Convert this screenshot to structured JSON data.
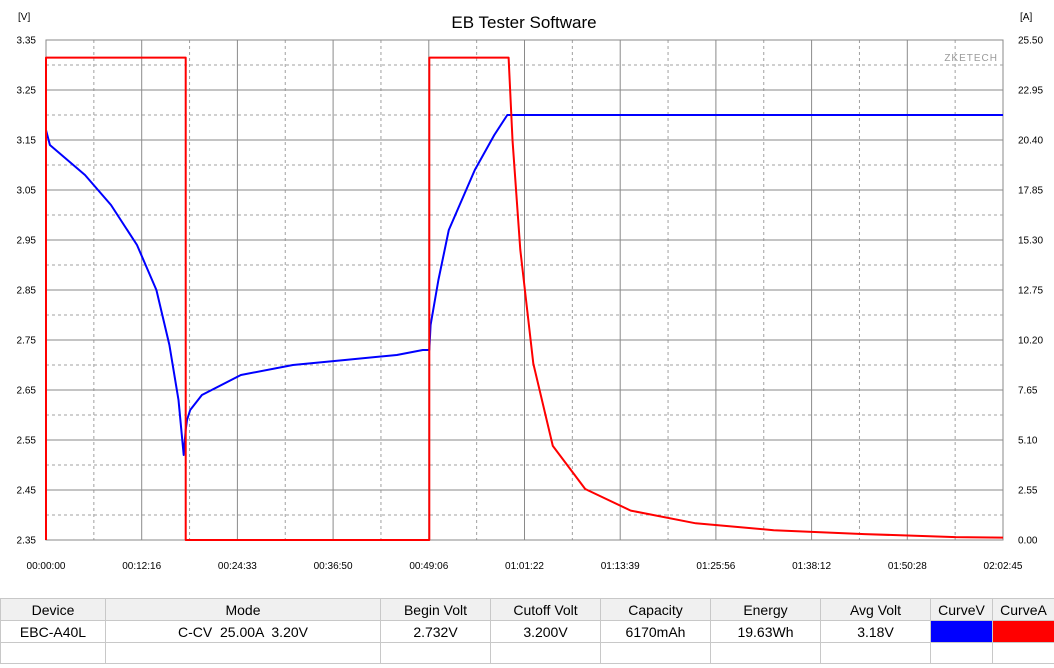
{
  "chart_data": {
    "type": "line",
    "title": "EB Tester Software",
    "watermark": "ZKETECH",
    "y_left_unit": "[V]",
    "y_right_unit": "[A]",
    "y_left_range": [
      2.35,
      3.35
    ],
    "y_right_range": [
      0.0,
      25.5
    ],
    "x_range_seconds": [
      0,
      7365
    ],
    "x_tick_labels": [
      "00:00:00",
      "00:12:16",
      "00:24:33",
      "00:36:50",
      "00:49:06",
      "01:01:22",
      "01:13:39",
      "01:25:56",
      "01:38:12",
      "01:50:28",
      "02:02:45"
    ],
    "y_left_tick_labels": [
      "3.35",
      "3.25",
      "3.15",
      "3.05",
      "2.95",
      "2.85",
      "2.75",
      "2.65",
      "2.55",
      "2.45",
      "2.35"
    ],
    "y_right_tick_labels": [
      "25.50",
      "22.95",
      "20.40",
      "17.85",
      "15.30",
      "12.75",
      "10.20",
      "7.65",
      "5.10",
      "2.55",
      "0.00"
    ],
    "grid": true,
    "series": [
      {
        "name": "CurveV",
        "axis": "left",
        "color": "#0000ff",
        "x": [
          0,
          30,
          120,
          300,
          500,
          700,
          850,
          950,
          1020,
          1060,
          1075,
          1085,
          1110,
          1200,
          1500,
          1900,
          2300,
          2700,
          2900,
          2950,
          2960,
          3020,
          3100,
          3300,
          3450,
          3550,
          7365
        ],
        "y": [
          3.17,
          3.14,
          3.12,
          3.08,
          3.02,
          2.94,
          2.85,
          2.74,
          2.63,
          2.52,
          2.57,
          2.59,
          2.61,
          2.64,
          2.68,
          2.7,
          2.71,
          2.72,
          2.73,
          2.73,
          2.78,
          2.87,
          2.97,
          3.09,
          3.16,
          3.2,
          3.2
        ]
      },
      {
        "name": "CurveA",
        "axis": "right",
        "color": "#ff0000",
        "x": [
          0,
          0,
          10,
          1075,
          1075,
          2950,
          2950,
          3560,
          3590,
          3650,
          3750,
          3900,
          4150,
          4500,
          5000,
          5600,
          6300,
          7000,
          7365
        ],
        "y": [
          0,
          24.6,
          24.6,
          24.6,
          0,
          0,
          24.6,
          24.6,
          20.4,
          14.8,
          9.0,
          4.8,
          2.6,
          1.5,
          0.85,
          0.5,
          0.3,
          0.15,
          0.12
        ]
      }
    ]
  },
  "info_table": {
    "headers": [
      "Device",
      "Mode",
      "Begin Volt",
      "Cutoff Volt",
      "Capacity",
      "Energy",
      "Avg Volt",
      "CurveV",
      "CurveA"
    ],
    "values": {
      "device": "EBC-A40L",
      "mode": "C-CV  25.00A  3.20V",
      "begin_volt": "2.732V",
      "cutoff_volt": "3.200V",
      "capacity": "6170mAh",
      "energy": "19.63Wh",
      "avg_volt": "3.18V"
    },
    "curve_colors": {
      "v": "#0000ff",
      "a": "#ff0000"
    }
  }
}
